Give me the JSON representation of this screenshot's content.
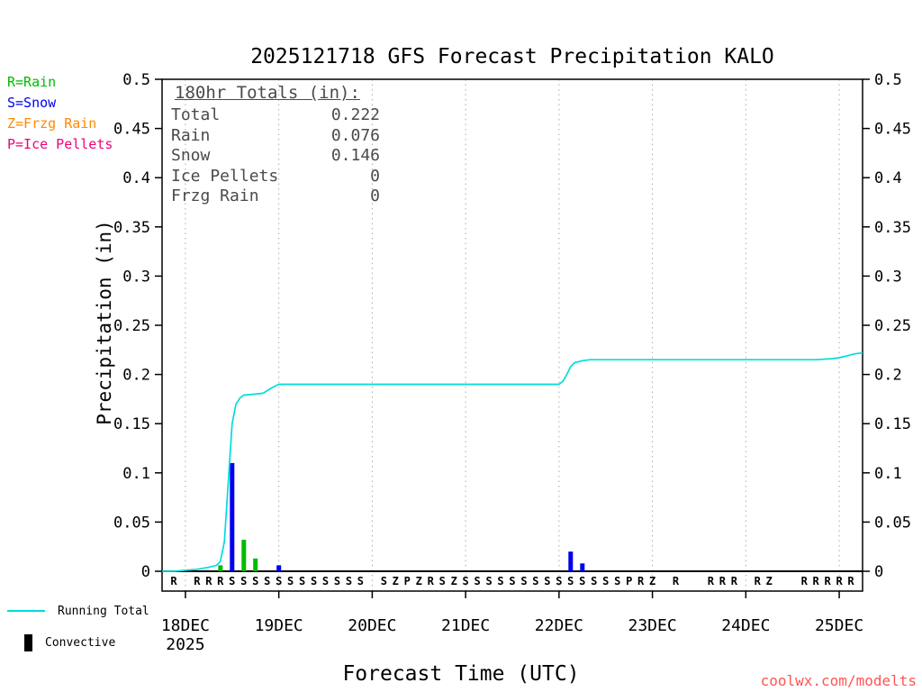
{
  "title": "2025121718 GFS Forecast Precipitation KALO",
  "watermark": "coolwx.com/modelts",
  "colors": {
    "watermark": "#ff5555",
    "grid": "#aaaaaa",
    "axis": "#000000",
    "totals_text": "#4a4a4a"
  },
  "type_legend": [
    {
      "label": "R=Rain",
      "color": "#00bb00"
    },
    {
      "label": "S=Snow",
      "color": "#0000ee"
    },
    {
      "label": "Z=Frzg Rain",
      "color": "#ff8800"
    },
    {
      "label": "P=Ice Pellets",
      "color": "#ee0077"
    }
  ],
  "bottom_legend": {
    "line_label": "Running Total",
    "bar_label": "Convective",
    "line_color": "#00dddd",
    "bar_color": "#000000"
  },
  "totals_box": {
    "heading": "180hr Totals (in):",
    "rows": [
      {
        "label": "Total",
        "value": "0.222"
      },
      {
        "label": "Rain",
        "value": "0.076"
      },
      {
        "label": "Snow",
        "value": "0.146"
      },
      {
        "label": "Ice Pellets",
        "value": "0"
      },
      {
        "label": "Frzg Rain",
        "value": "0"
      }
    ]
  },
  "chart_data": {
    "type": "line",
    "title": "2025121718 GFS Forecast Precipitation KALO",
    "xlabel": "Forecast Time (UTC)",
    "ylabel": "Precipitation (in)",
    "ylim": [
      0,
      0.5
    ],
    "ytick_step": 0.05,
    "grid": "vertical-dotted",
    "x_axis": {
      "start_hour": 0,
      "end_hour": 180,
      "day_ticks": [
        {
          "hour": 6,
          "label": "18DEC",
          "sublabel": "2025"
        },
        {
          "hour": 30,
          "label": "19DEC"
        },
        {
          "hour": 54,
          "label": "20DEC"
        },
        {
          "hour": 78,
          "label": "21DEC"
        },
        {
          "hour": 102,
          "label": "22DEC"
        },
        {
          "hour": 126,
          "label": "23DEC"
        },
        {
          "hour": 150,
          "label": "24DEC"
        },
        {
          "hour": 174,
          "label": "25DEC"
        }
      ]
    },
    "series": [
      {
        "name": "Running Total",
        "color": "#00dddd",
        "points": [
          [
            0,
            0
          ],
          [
            3,
            0
          ],
          [
            6,
            0.001
          ],
          [
            9,
            0.002
          ],
          [
            12,
            0.004
          ],
          [
            14,
            0.006
          ],
          [
            15,
            0.01
          ],
          [
            16,
            0.03
          ],
          [
            17,
            0.09
          ],
          [
            18,
            0.15
          ],
          [
            19,
            0.17
          ],
          [
            20,
            0.176
          ],
          [
            21,
            0.179
          ],
          [
            24,
            0.18
          ],
          [
            26,
            0.181
          ],
          [
            28,
            0.186
          ],
          [
            30,
            0.19
          ],
          [
            36,
            0.19
          ],
          [
            48,
            0.19
          ],
          [
            60,
            0.19
          ],
          [
            72,
            0.19
          ],
          [
            84,
            0.19
          ],
          [
            96,
            0.19
          ],
          [
            102,
            0.19
          ],
          [
            103,
            0.193
          ],
          [
            104,
            0.2
          ],
          [
            105,
            0.208
          ],
          [
            106,
            0.212
          ],
          [
            108,
            0.214
          ],
          [
            110,
            0.215
          ],
          [
            120,
            0.215
          ],
          [
            132,
            0.215
          ],
          [
            144,
            0.215
          ],
          [
            156,
            0.215
          ],
          [
            168,
            0.215
          ],
          [
            172,
            0.216
          ],
          [
            174,
            0.217
          ],
          [
            176,
            0.219
          ],
          [
            178,
            0.221
          ],
          [
            180,
            0.222
          ]
        ]
      }
    ],
    "bars": [
      {
        "hour": 15,
        "value": 0.006,
        "type": "R"
      },
      {
        "hour": 18,
        "value": 0.11,
        "type": "S"
      },
      {
        "hour": 21,
        "value": 0.032,
        "type": "R"
      },
      {
        "hour": 24,
        "value": 0.013,
        "type": "R"
      },
      {
        "hour": 30,
        "value": 0.006,
        "type": "S"
      },
      {
        "hour": 105,
        "value": 0.02,
        "type": "S"
      },
      {
        "hour": 108,
        "value": 0.008,
        "type": "S"
      }
    ],
    "precip_type_markers": [
      [
        3,
        "R"
      ],
      [
        9,
        "R"
      ],
      [
        12,
        "R"
      ],
      [
        15,
        "R"
      ],
      [
        18,
        "S"
      ],
      [
        21,
        "S"
      ],
      [
        24,
        "S"
      ],
      [
        27,
        "S"
      ],
      [
        30,
        "S"
      ],
      [
        33,
        "S"
      ],
      [
        36,
        "S"
      ],
      [
        39,
        "S"
      ],
      [
        42,
        "S"
      ],
      [
        45,
        "S"
      ],
      [
        48,
        "S"
      ],
      [
        51,
        "S"
      ],
      [
        57,
        "S"
      ],
      [
        60,
        "Z"
      ],
      [
        63,
        "P"
      ],
      [
        66,
        "Z"
      ],
      [
        69,
        "R"
      ],
      [
        72,
        "S"
      ],
      [
        75,
        "Z"
      ],
      [
        78,
        "S"
      ],
      [
        81,
        "S"
      ],
      [
        84,
        "S"
      ],
      [
        87,
        "S"
      ],
      [
        90,
        "S"
      ],
      [
        93,
        "S"
      ],
      [
        96,
        "S"
      ],
      [
        99,
        "S"
      ],
      [
        102,
        "S"
      ],
      [
        105,
        "S"
      ],
      [
        108,
        "S"
      ],
      [
        111,
        "S"
      ],
      [
        114,
        "S"
      ],
      [
        117,
        "S"
      ],
      [
        120,
        "P"
      ],
      [
        123,
        "R"
      ],
      [
        126,
        "Z"
      ],
      [
        132,
        "R"
      ],
      [
        141,
        "R"
      ],
      [
        144,
        "R"
      ],
      [
        147,
        "R"
      ],
      [
        153,
        "R"
      ],
      [
        156,
        "Z"
      ],
      [
        165,
        "R"
      ],
      [
        168,
        "R"
      ],
      [
        171,
        "R"
      ],
      [
        174,
        "R"
      ],
      [
        177,
        "R"
      ]
    ],
    "type_colors": {
      "R": "#00bb00",
      "S": "#0000ee",
      "Z": "#ff8800",
      "P": "#ee0077"
    }
  }
}
